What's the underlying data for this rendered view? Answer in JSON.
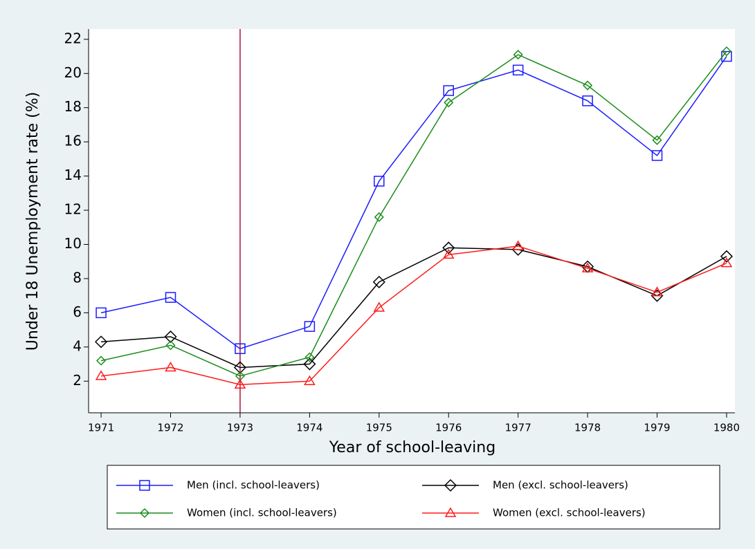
{
  "chart_data": {
    "type": "line",
    "x_label": "Year of school-leaving",
    "y_label": "Under 18 Unemployment rate (%)",
    "x": [
      1971,
      1972,
      1973,
      1974,
      1975,
      1976,
      1977,
      1978,
      1979,
      1980
    ],
    "xlim": [
      1970.82,
      1980.12
    ],
    "xticks": [
      1971,
      1972,
      1973,
      1974,
      1975,
      1976,
      1977,
      1978,
      1979,
      1980
    ],
    "ylim": [
      0.15,
      22.6
    ],
    "yticks": [
      2,
      4,
      6,
      8,
      10,
      12,
      14,
      16,
      18,
      20,
      22
    ],
    "grid": false,
    "vline": {
      "x": 1973,
      "color": "#b0103a"
    },
    "series": [
      {
        "name": "Men (incl. school-leavers)",
        "color": "#1a1aff",
        "marker": "square",
        "values": [
          6.0,
          6.9,
          3.9,
          5.2,
          13.7,
          19.0,
          20.2,
          18.4,
          15.2,
          21.0
        ]
      },
      {
        "name": "Men (excl. school-leavers)",
        "color": "#000000",
        "marker": "diamond",
        "values": [
          4.3,
          4.6,
          2.8,
          3.0,
          7.8,
          9.8,
          9.7,
          8.7,
          7.0,
          9.3
        ]
      },
      {
        "name": "Women (incl. school-leavers)",
        "color": "#1a8c1a",
        "marker": "small-diamond",
        "values": [
          3.2,
          4.1,
          2.3,
          3.4,
          11.6,
          18.3,
          21.1,
          19.3,
          16.1,
          21.3
        ]
      },
      {
        "name": "Women (excl. school-leavers)",
        "color": "#ff1a1a",
        "marker": "triangle",
        "values": [
          2.3,
          2.8,
          1.8,
          2.0,
          6.3,
          9.4,
          9.9,
          8.6,
          7.2,
          8.9
        ]
      }
    ]
  }
}
